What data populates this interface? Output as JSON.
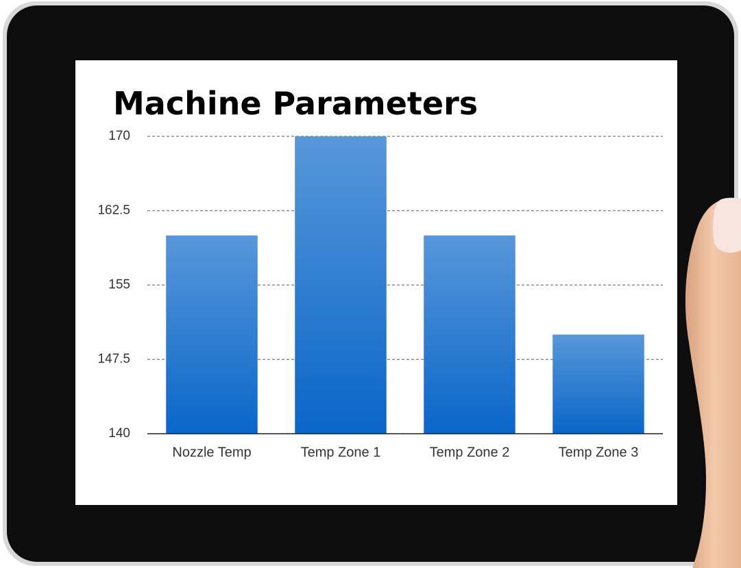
{
  "chart_data": {
    "type": "bar",
    "title": "Machine Parameters",
    "categories": [
      "Nozzle Temp",
      "Temp Zone 1",
      "Temp Zone 2",
      "Temp Zone 3"
    ],
    "values": [
      160,
      170,
      160,
      150
    ],
    "color": "#0a66c8",
    "ylim": [
      140,
      170
    ],
    "yticks": [
      140,
      147.5,
      155,
      162.5,
      170
    ],
    "grid": true
  }
}
